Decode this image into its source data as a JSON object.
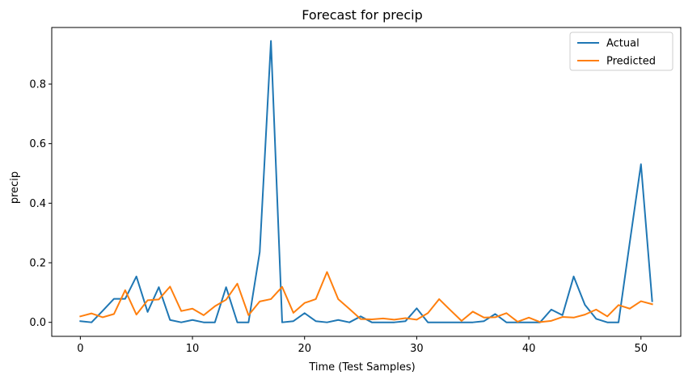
{
  "chart_data": {
    "type": "line",
    "title": "Forecast for precip",
    "xlabel": "Time (Test Samples)",
    "ylabel": "precip",
    "xlim": [
      -2.55,
      53.55
    ],
    "ylim": [
      -0.047,
      0.99
    ],
    "xticks": [
      0,
      10,
      20,
      30,
      40,
      50
    ],
    "yticks": [
      0.0,
      0.2,
      0.4,
      0.6,
      0.8
    ],
    "ytick_labels": [
      "0.0",
      "0.2",
      "0.4",
      "0.6",
      "0.8"
    ],
    "grid": false,
    "legend": "top-right",
    "x": [
      0,
      1,
      2,
      3,
      4,
      5,
      6,
      7,
      8,
      9,
      10,
      11,
      12,
      13,
      14,
      15,
      16,
      17,
      18,
      19,
      20,
      21,
      22,
      23,
      24,
      25,
      26,
      27,
      28,
      29,
      30,
      31,
      32,
      33,
      34,
      35,
      36,
      37,
      38,
      39,
      40,
      41,
      42,
      43,
      44,
      45,
      46,
      47,
      48,
      49,
      50,
      51
    ],
    "series": [
      {
        "name": "Actual",
        "color": "#1f77b4",
        "values": [
          0.004,
          0.0,
          0.039,
          0.079,
          0.079,
          0.154,
          0.035,
          0.118,
          0.008,
          0.0,
          0.008,
          0.0,
          0.0,
          0.118,
          0.0,
          0.0,
          0.236,
          0.945,
          0.0,
          0.004,
          0.031,
          0.004,
          0.0,
          0.008,
          0.0,
          0.02,
          0.0,
          0.0,
          0.0,
          0.004,
          0.047,
          0.0,
          0.0,
          0.0,
          0.0,
          0.0,
          0.004,
          0.028,
          0.0,
          0.0,
          0.0,
          0.0,
          0.043,
          0.024,
          0.154,
          0.059,
          0.012,
          0.0,
          0.0,
          0.268,
          0.531,
          0.071
        ]
      },
      {
        "name": "Predicted",
        "color": "#ff7f0e",
        "values": [
          0.02,
          0.03,
          0.017,
          0.028,
          0.108,
          0.026,
          0.074,
          0.077,
          0.12,
          0.038,
          0.046,
          0.024,
          0.054,
          0.076,
          0.13,
          0.024,
          0.07,
          0.078,
          0.119,
          0.032,
          0.065,
          0.078,
          0.169,
          0.078,
          0.045,
          0.011,
          0.01,
          0.013,
          0.009,
          0.014,
          0.009,
          0.031,
          0.078,
          0.041,
          0.005,
          0.036,
          0.016,
          0.017,
          0.031,
          0.002,
          0.016,
          0.001,
          0.005,
          0.018,
          0.016,
          0.026,
          0.043,
          0.02,
          0.058,
          0.046,
          0.071,
          0.061
        ]
      }
    ]
  }
}
